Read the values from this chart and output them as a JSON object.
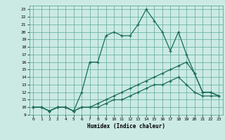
{
  "xlabel": "Humidex (Indice chaleur)",
  "background_color": "#cceae4",
  "grid_color": "#5aaa96",
  "line_color": "#1a6b5a",
  "xlim": [
    -0.5,
    23.5
  ],
  "ylim": [
    9,
    23.5
  ],
  "xticks": [
    0,
    1,
    2,
    3,
    4,
    5,
    6,
    7,
    8,
    9,
    10,
    11,
    12,
    13,
    14,
    15,
    16,
    17,
    18,
    19,
    20,
    21,
    22,
    23
  ],
  "yticks": [
    9,
    10,
    11,
    12,
    13,
    14,
    15,
    16,
    17,
    18,
    19,
    20,
    21,
    22,
    23
  ],
  "lines": [
    {
      "x": [
        0,
        1,
        2,
        3,
        4,
        5,
        6,
        7,
        8,
        9,
        10,
        11,
        12,
        13,
        14,
        15,
        16,
        17,
        18,
        19,
        20,
        21,
        22,
        23
      ],
      "y": [
        10,
        10,
        9.5,
        10,
        10,
        9.5,
        12,
        16,
        16,
        19.5,
        20,
        19.5,
        19.5,
        21,
        23,
        21.5,
        20,
        17.5,
        20,
        17,
        14.5,
        12,
        12,
        11.5
      ]
    },
    {
      "x": [
        0,
        1,
        2,
        3,
        4,
        5,
        6,
        7,
        8,
        9,
        10,
        11,
        12,
        13,
        14,
        15,
        16,
        17,
        18,
        19,
        20,
        21,
        22,
        23
      ],
      "y": [
        10,
        10,
        9.5,
        10,
        10,
        9.5,
        10,
        10,
        10.5,
        11,
        11.5,
        12,
        12.5,
        13,
        13.5,
        14,
        14.5,
        15,
        15.5,
        16,
        14.5,
        12,
        12,
        11.5
      ]
    },
    {
      "x": [
        0,
        1,
        2,
        3,
        4,
        5,
        6,
        7,
        8,
        9,
        10,
        11,
        12,
        13,
        14,
        15,
        16,
        17,
        18,
        19,
        20,
        21,
        22,
        23
      ],
      "y": [
        10,
        10,
        9.5,
        10,
        10,
        9.5,
        10,
        10,
        10,
        10.5,
        11,
        11,
        11.5,
        12,
        12.5,
        13,
        13,
        13.5,
        14,
        13,
        12,
        11.5,
        11.5,
        11.5
      ]
    }
  ]
}
